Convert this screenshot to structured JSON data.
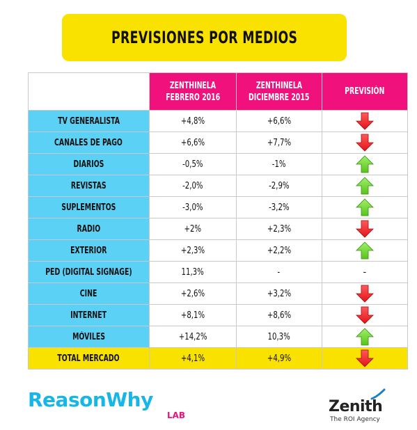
{
  "title": "PREVISIONES POR MEDIOS",
  "columns": {
    "col1": "ZENTHINELA\nFEBRERO 2016",
    "col1_line1": "ZENTHINELA",
    "col1_line2": "FEBRERO 2016",
    "col2_line1": "ZENTHINELA",
    "col2_line2": "DICIEMBRE 2015",
    "col3": "PREVISIÓN"
  },
  "rows": [
    {
      "label": "TV GENERALISTA",
      "feb2016": "+4,8%",
      "dic2015": "+6,6%",
      "forecast": "down"
    },
    {
      "label": "CANALES DE PAGO",
      "feb2016": "+6,6%",
      "dic2015": "+7,7%",
      "forecast": "down"
    },
    {
      "label": "DIARIOS",
      "feb2016": "-0,5%",
      "dic2015": "-1%",
      "forecast": "up"
    },
    {
      "label": "REVISTAS",
      "feb2016": "-2,0%",
      "dic2015": "-2,9%",
      "forecast": "up"
    },
    {
      "label": "SUPLEMENTOS",
      "feb2016": "-3,0%",
      "dic2015": "-3,2%",
      "forecast": "up"
    },
    {
      "label": "RADIO",
      "feb2016": "+2%",
      "dic2015": "+2,3%",
      "forecast": "down"
    },
    {
      "label": "EXTERIOR",
      "feb2016": "+2,3%",
      "dic2015": "+2,2%",
      "forecast": "up"
    },
    {
      "label": "PED (DIGITAL SIGNAGE)",
      "feb2016": "11,3%",
      "dic2015": "-",
      "forecast": "-"
    },
    {
      "label": "CINE",
      "feb2016": "+2,6%",
      "dic2015": "+3,2%",
      "forecast": "down"
    },
    {
      "label": "INTERNET",
      "feb2016": "+8,1%",
      "dic2015": "+8,6%",
      "forecast": "down"
    },
    {
      "label": "MÓVILES",
      "feb2016": "+14,2%",
      "dic2015": "10,3%",
      "forecast": "up"
    },
    {
      "label": "TOTAL MERCADO",
      "feb2016": "+4,1%",
      "dic2015": "+4,9%",
      "forecast": "down"
    }
  ],
  "footer": {
    "brand": "ReasonWhy",
    "brand_suffix": "LAB",
    "partner": "Zenith",
    "partner_tagline": "The ROI Agency"
  },
  "colors": {
    "title_bg": "#f9e100",
    "header_bg": "#f0117d",
    "label_bg": "#5bd2f5",
    "total_bg": "#f9e100",
    "arrow_down": "#e3141b",
    "arrow_up": "#58c41a",
    "brand": "#16b6e6",
    "brand_suffix": "#f0117d"
  },
  "icons": {
    "down": "arrow-down-icon",
    "up": "arrow-up-icon",
    "partner_mark": "zenith-swoosh-icon"
  }
}
